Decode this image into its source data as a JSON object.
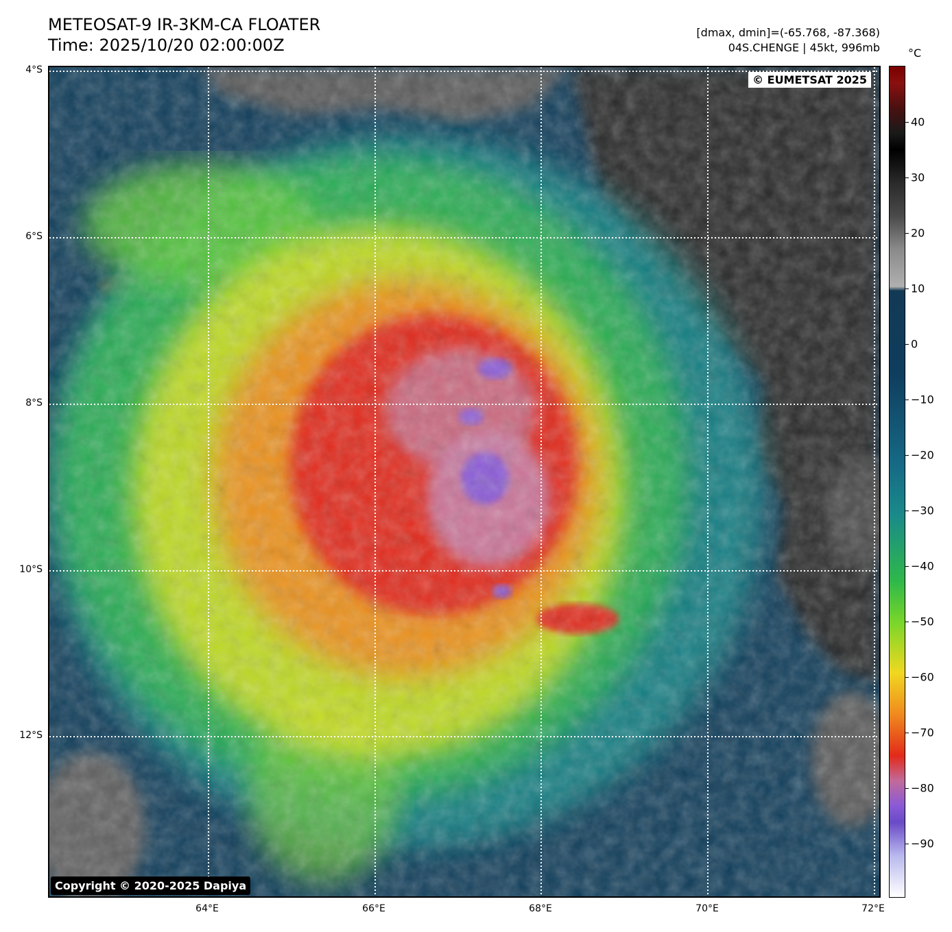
{
  "header": {
    "title": "METEOSAT-9 IR-3KM-CA FLOATER",
    "time": "Time: 2025/10/20 02:00:00Z",
    "range": "[dmax, dmin]=(-65.768, -87.368)",
    "storm": "04S.CHENGE | 45kt, 996mb"
  },
  "map": {
    "lat_labels": [
      "4°S",
      "6°S",
      "8°S",
      "10°S",
      "12°S"
    ],
    "lon_labels": [
      "64°E",
      "66°E",
      "68°E",
      "70°E",
      "72°E"
    ],
    "credit_top": "© EUMETSAT 2025",
    "credit_bottom": "Copyright © 2020-2025 Dapiya"
  },
  "colorbar": {
    "unit": "°C",
    "ticks": [
      "40",
      "30",
      "20",
      "10",
      "0",
      "−10",
      "−20",
      "−30",
      "−40",
      "−50",
      "−60",
      "−70",
      "−80",
      "−90"
    ]
  }
}
